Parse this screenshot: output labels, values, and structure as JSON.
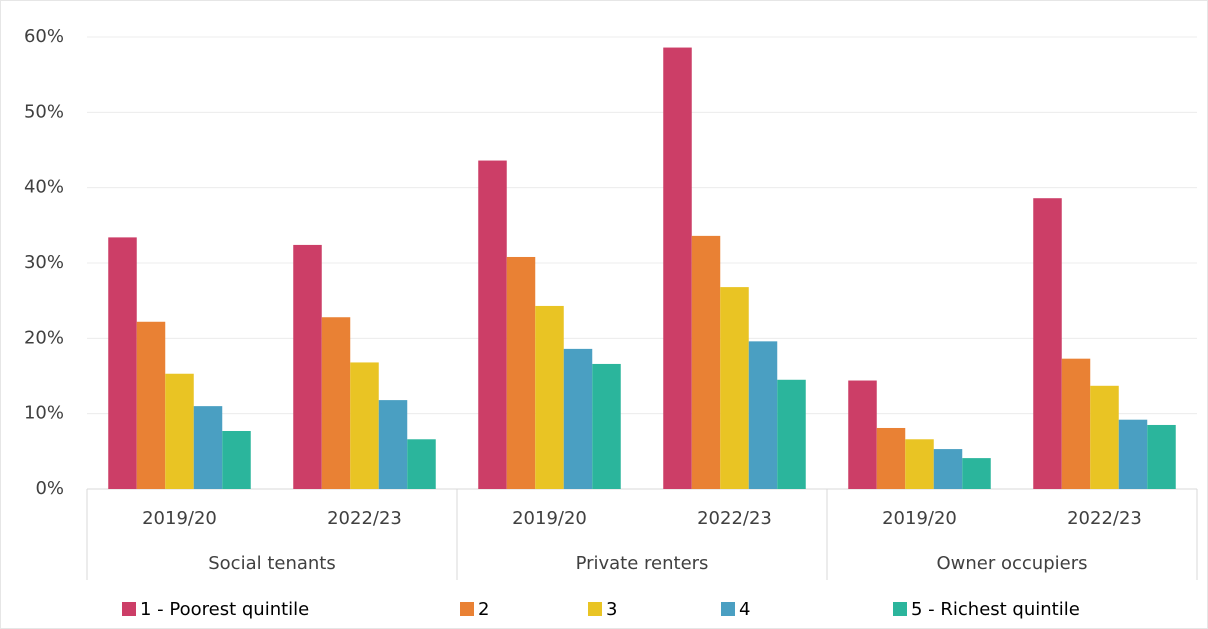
{
  "chart_data": {
    "type": "bar",
    "categories": [
      "2019/20",
      "2022/23",
      "2019/20",
      "2022/23",
      "2019/20",
      "2022/23"
    ],
    "groups": [
      "Social tenants",
      "Private renters",
      "Owner occupiers"
    ],
    "series": [
      {
        "name": "1 - Poorest quintile",
        "color": "#cc3e67",
        "values": [
          33.4,
          32.4,
          43.6,
          58.6,
          14.4,
          38.6
        ]
      },
      {
        "name": "2",
        "color": "#e98134",
        "values": [
          22.2,
          22.8,
          30.8,
          33.6,
          8.1,
          17.3
        ]
      },
      {
        "name": "3",
        "color": "#e9c424",
        "values": [
          15.3,
          16.8,
          24.3,
          26.8,
          6.6,
          13.7
        ]
      },
      {
        "name": "4",
        "color": "#4a9fc2",
        "values": [
          11.0,
          11.8,
          18.6,
          19.6,
          5.3,
          9.2
        ]
      },
      {
        "name": "5 - Richest quintile",
        "color": "#2bb59c",
        "values": [
          7.7,
          6.6,
          16.6,
          14.5,
          4.1,
          8.5
        ]
      }
    ],
    "ylim": [
      0,
      60
    ],
    "yticks": [
      {
        "value": 0,
        "label": "0%"
      },
      {
        "value": 10,
        "label": "10%"
      },
      {
        "value": 20,
        "label": "20%"
      },
      {
        "value": 30,
        "label": "30%"
      },
      {
        "value": 40,
        "label": "40%"
      },
      {
        "value": 50,
        "label": "50%"
      },
      {
        "value": 60,
        "label": "60%"
      }
    ],
    "grid": true
  }
}
